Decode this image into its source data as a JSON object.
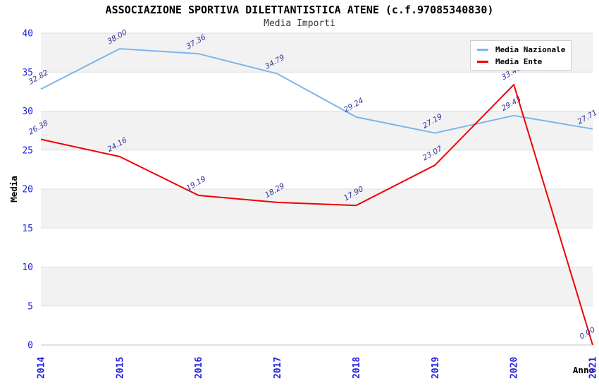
{
  "header": {
    "title": "ASSOCIAZIONE SPORTIVA DILETTANTISTICA ATENE (c.f.97085340830)",
    "subtitle": "Media Importi"
  },
  "legend": {
    "items": [
      {
        "label": "Media Nazionale",
        "color": "#7cb5ec"
      },
      {
        "label": "Media Ente",
        "color": "#ee0000"
      }
    ]
  },
  "chart_data": {
    "type": "line",
    "title": "ASSOCIAZIONE SPORTIVA DILETTANTISTICA ATENE (c.f.97085340830)",
    "subtitle": "Media Importi",
    "xlabel": "Anno",
    "ylabel": "Media",
    "categories": [
      "2014",
      "2015",
      "2016",
      "2017",
      "2018",
      "2019",
      "2020",
      "2021"
    ],
    "series": [
      {
        "name": "Media Nazionale",
        "color": "#7cb5ec",
        "values": [
          32.82,
          38.0,
          37.36,
          34.79,
          29.24,
          27.19,
          29.43,
          27.71
        ]
      },
      {
        "name": "Media Ente",
        "color": "#ee0000",
        "values": [
          26.38,
          24.16,
          19.19,
          18.29,
          17.9,
          23.07,
          33.4,
          0.0
        ]
      }
    ],
    "ylim": [
      0,
      40
    ],
    "ytick_step": 5,
    "ytick_labels": [
      "0",
      "5",
      "10",
      "15",
      "20",
      "25",
      "30",
      "35",
      "40"
    ],
    "data_label_format": "0.00",
    "legend_position": "top-right",
    "grid": "alternating-horizontal-bands",
    "styles": {
      "band_color": "#f2f2f2",
      "gridline_color": "#dedede",
      "axis_line_color": "#c4c4c4",
      "tick_label_color": "#2222dd",
      "data_label_color": "#333399",
      "axis_title_color": "#000000"
    }
  }
}
